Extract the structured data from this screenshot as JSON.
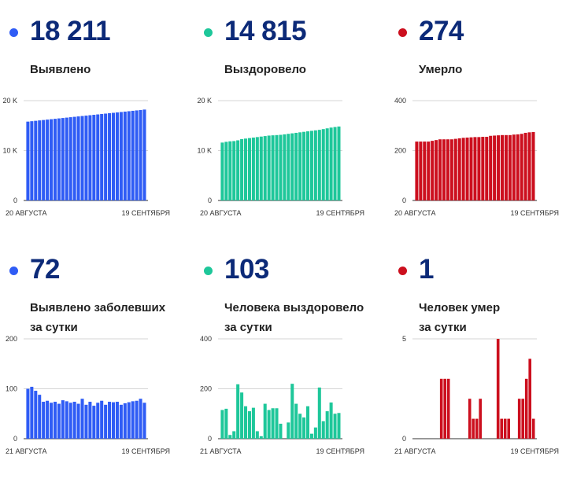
{
  "colors": {
    "blue": "#2f5cf5",
    "green": "#1ec79a",
    "red": "#cc0f1e",
    "title": "#0c2a78"
  },
  "panels": [
    {
      "value": "18 211",
      "label_lines": [
        "Выявлено"
      ],
      "color": "#2f5cf5"
    },
    {
      "value": "14 815",
      "label_lines": [
        "Выздоровело"
      ],
      "color": "#1ec79a"
    },
    {
      "value": "274",
      "label_lines": [
        "Умерло"
      ],
      "color": "#cc0f1e"
    },
    {
      "value": "72",
      "label_lines": [
        "Выявлено заболевших",
        "за сутки"
      ],
      "color": "#2f5cf5"
    },
    {
      "value": "103",
      "label_lines": [
        "Человека выздоровело",
        "за сутки"
      ],
      "color": "#1ec79a"
    },
    {
      "value": "1",
      "label_lines": [
        "Человек умер",
        "за сутки"
      ],
      "color": "#cc0f1e"
    }
  ],
  "chart_data": [
    {
      "type": "bar",
      "title": "",
      "color": "#2f5cf5",
      "ylim": [
        0,
        20000
      ],
      "yticks": [
        0,
        10000,
        20000
      ],
      "ytick_labels": [
        "0",
        "10 K",
        "20 K"
      ],
      "x_start_label": "20 АВГУСТА",
      "x_end_label": "19 СЕНТЯБРЯ",
      "values": [
        15800,
        15880,
        15960,
        16040,
        16120,
        16200,
        16280,
        16360,
        16440,
        16520,
        16600,
        16680,
        16760,
        16840,
        16920,
        17000,
        17080,
        17160,
        17240,
        17320,
        17400,
        17480,
        17560,
        17640,
        17720,
        17800,
        17880,
        17960,
        18040,
        18120,
        18211
      ]
    },
    {
      "type": "bar",
      "title": "",
      "color": "#1ec79a",
      "ylim": [
        0,
        20000
      ],
      "yticks": [
        0,
        10000,
        20000
      ],
      "ytick_labels": [
        "0",
        "10 K",
        "20 K"
      ],
      "x_start_label": "20 АВГУСТА",
      "x_end_label": "19 СЕНТЯБРЯ",
      "values": [
        11600,
        11750,
        11850,
        11900,
        12050,
        12300,
        12400,
        12500,
        12600,
        12700,
        12800,
        12900,
        13000,
        13050,
        13100,
        13150,
        13250,
        13350,
        13450,
        13550,
        13650,
        13750,
        13850,
        13950,
        14050,
        14150,
        14300,
        14450,
        14600,
        14712,
        14815
      ]
    },
    {
      "type": "bar",
      "title": "",
      "color": "#cc0f1e",
      "ylim": [
        0,
        400
      ],
      "yticks": [
        0,
        200,
        400
      ],
      "ytick_labels": [
        "0",
        "200",
        "400"
      ],
      "x_start_label": "20 АВГУСТА",
      "x_end_label": "19 СЕНТЯБРЯ",
      "values": [
        236,
        236,
        236,
        236,
        239,
        242,
        245,
        245,
        245,
        245,
        247,
        249,
        251,
        252,
        253,
        254,
        254,
        255,
        255,
        259,
        260,
        261,
        262,
        262,
        262,
        264,
        265,
        267,
        271,
        273,
        274
      ]
    },
    {
      "type": "bar",
      "title": "",
      "color": "#2f5cf5",
      "ylim": [
        0,
        200
      ],
      "yticks": [
        0,
        100,
        200
      ],
      "ytick_labels": [
        "0",
        "100",
        "200"
      ],
      "x_start_label": "21 АВГУСТА",
      "x_end_label": "19 СЕНТЯБРЯ",
      "values": [
        100,
        104,
        96,
        88,
        74,
        76,
        72,
        74,
        70,
        77,
        75,
        72,
        74,
        70,
        80,
        68,
        74,
        66,
        72,
        76,
        68,
        74,
        73,
        74,
        68,
        71,
        73,
        75,
        76,
        80,
        72
      ]
    },
    {
      "type": "bar",
      "title": "",
      "color": "#1ec79a",
      "ylim": [
        0,
        400
      ],
      "yticks": [
        0,
        200,
        400
      ],
      "ytick_labels": [
        "0",
        "200",
        "400"
      ],
      "x_start_label": "21 АВГУСТА",
      "x_end_label": "19 СЕНТЯБРЯ",
      "values": [
        115,
        120,
        15,
        30,
        218,
        185,
        130,
        110,
        124,
        30,
        10,
        140,
        115,
        122,
        122,
        60,
        0,
        65,
        220,
        140,
        100,
        85,
        130,
        20,
        45,
        205,
        70,
        110,
        145,
        100,
        103
      ]
    },
    {
      "type": "bar",
      "title": "",
      "color": "#cc0f1e",
      "ylim": [
        0,
        5
      ],
      "yticks": [
        0,
        5
      ],
      "ytick_labels": [
        "0",
        "5"
      ],
      "x_start_label": "21 АВГУСТА",
      "x_end_label": "19 СЕНТЯБРЯ",
      "values": [
        0,
        0,
        0,
        0,
        0,
        0,
        0,
        3,
        3,
        3,
        0,
        0,
        0,
        0,
        0,
        2,
        1,
        1,
        2,
        0,
        0,
        0,
        0,
        5,
        1,
        1,
        1,
        0,
        0,
        2,
        2,
        3,
        4,
        1
      ]
    }
  ]
}
